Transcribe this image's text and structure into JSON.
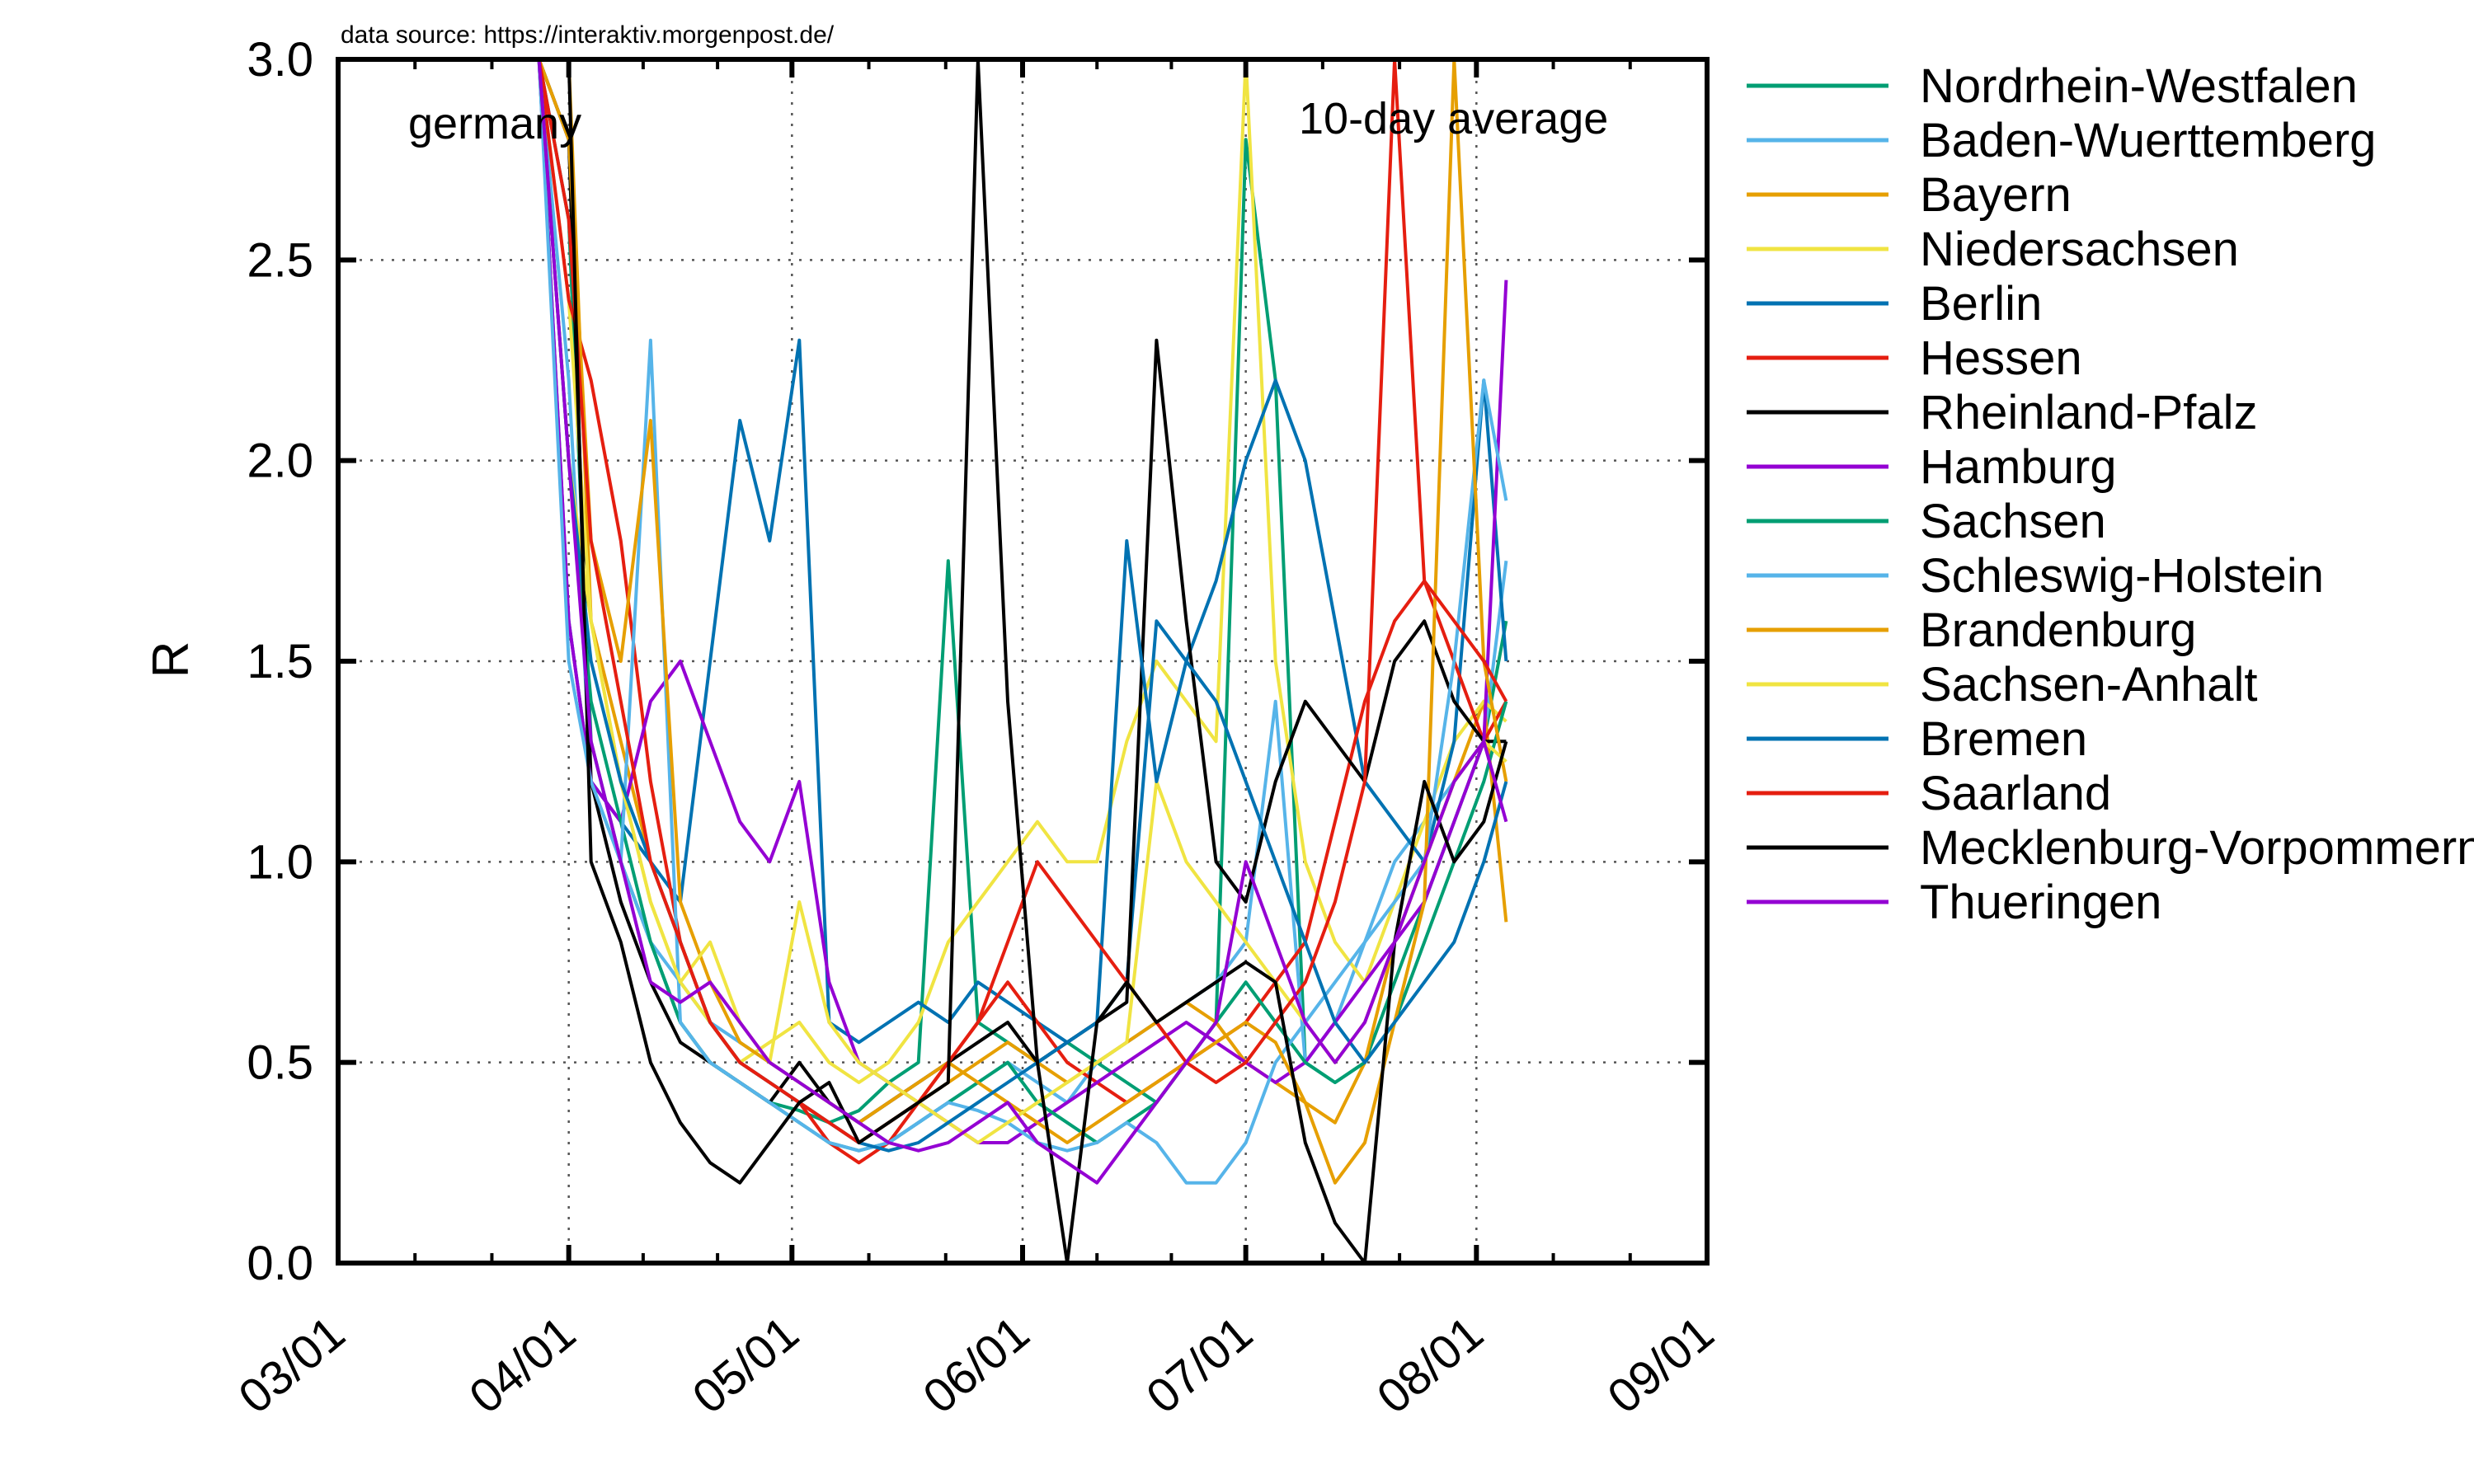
{
  "chart_data": {
    "type": "line",
    "source_note": "data source: https://interaktiv.morgenpost.de/",
    "annotation_left": "germany",
    "annotation_right": "10-day average",
    "xlabel": "",
    "ylabel": "R",
    "xlim": [
      "2020-03-01",
      "2020-09-01"
    ],
    "ylim": [
      0,
      3.0
    ],
    "x_ticks": [
      "03/01",
      "04/01",
      "05/01",
      "06/01",
      "07/01",
      "08/01",
      "09/01"
    ],
    "x_tick_dates": [
      "2020-03-01",
      "2020-04-01",
      "2020-05-01",
      "2020-06-01",
      "2020-07-01",
      "2020-08-01",
      "2020-09-01"
    ],
    "y_ticks": [
      "0.0",
      "0.5",
      "1.0",
      "1.5",
      "2.0",
      "2.5",
      "3.0"
    ],
    "y_tick_values": [
      0,
      0.5,
      1.0,
      1.5,
      2.0,
      2.5,
      3.0
    ],
    "grid": true,
    "legend_position": "outside-right",
    "x": [
      "2020-03-28",
      "2020-04-01",
      "2020-04-04",
      "2020-04-08",
      "2020-04-12",
      "2020-04-16",
      "2020-04-20",
      "2020-04-24",
      "2020-04-28",
      "2020-05-02",
      "2020-05-06",
      "2020-05-10",
      "2020-05-14",
      "2020-05-18",
      "2020-05-22",
      "2020-05-26",
      "2020-05-30",
      "2020-06-03",
      "2020-06-07",
      "2020-06-11",
      "2020-06-15",
      "2020-06-19",
      "2020-06-23",
      "2020-06-27",
      "2020-07-01",
      "2020-07-05",
      "2020-07-09",
      "2020-07-13",
      "2020-07-17",
      "2020-07-21",
      "2020-07-25",
      "2020-07-29",
      "2020-08-02",
      "2020-08-05"
    ],
    "series": [
      {
        "name": "Nordrhein-Westfalen",
        "color": "#009e73",
        "values": [
          3.0,
          2.6,
          1.3,
          1.0,
          0.8,
          0.6,
          0.5,
          0.45,
          0.4,
          0.38,
          0.35,
          0.38,
          0.45,
          0.5,
          1.75,
          0.6,
          0.55,
          0.5,
          0.55,
          0.5,
          0.45,
          0.4,
          0.5,
          0.6,
          2.8,
          2.2,
          0.5,
          0.45,
          0.5,
          0.7,
          0.9,
          1.1,
          1.3,
          1.6
        ]
      },
      {
        "name": "Baden-Wuerttemberg",
        "color": "#56b4e9",
        "values": [
          3.0,
          2.2,
          1.2,
          1.0,
          0.8,
          0.7,
          0.6,
          0.55,
          0.5,
          0.45,
          0.4,
          0.35,
          0.3,
          0.35,
          0.4,
          0.45,
          0.5,
          0.45,
          0.4,
          0.5,
          0.55,
          0.6,
          0.65,
          0.7,
          0.8,
          1.4,
          0.5,
          0.6,
          0.8,
          1.0,
          1.1,
          1.2,
          1.3,
          1.75
        ]
      },
      {
        "name": "Bayern",
        "color": "#e69f00",
        "values": [
          3.0,
          3.0,
          1.6,
          1.3,
          1.0,
          0.8,
          0.6,
          0.5,
          0.45,
          0.4,
          0.35,
          0.3,
          0.35,
          0.4,
          0.45,
          0.5,
          0.55,
          0.5,
          0.45,
          0.5,
          0.55,
          0.6,
          0.65,
          0.6,
          0.5,
          0.45,
          0.4,
          0.35,
          0.5,
          0.8,
          1.0,
          1.2,
          1.4,
          0.85
        ]
      },
      {
        "name": "Niedersachsen",
        "color": "#f0e442",
        "values": [
          3.0,
          2.4,
          1.6,
          1.2,
          0.9,
          0.7,
          0.6,
          0.5,
          0.55,
          0.6,
          0.5,
          0.45,
          0.5,
          0.6,
          0.8,
          0.9,
          1.0,
          1.1,
          1.0,
          1.0,
          1.3,
          1.5,
          1.4,
          1.3,
          3.0,
          1.5,
          1.0,
          0.8,
          0.7,
          0.9,
          1.1,
          1.3,
          1.4,
          1.35
        ]
      },
      {
        "name": "Berlin",
        "color": "#0072b2",
        "values": [
          3.0,
          1.6,
          1.2,
          1.1,
          1.0,
          0.9,
          1.5,
          2.1,
          1.8,
          2.3,
          0.6,
          0.55,
          0.6,
          0.65,
          0.6,
          0.7,
          0.65,
          0.6,
          0.55,
          0.6,
          0.7,
          1.6,
          1.5,
          1.7,
          2.0,
          2.2,
          2.0,
          1.6,
          1.2,
          1.1,
          1.0,
          1.3,
          2.2,
          1.5
        ]
      },
      {
        "name": "Hessen",
        "color": "#e51e10",
        "values": [
          3.0,
          2.4,
          2.2,
          1.8,
          1.2,
          0.8,
          0.6,
          0.5,
          0.45,
          0.4,
          0.3,
          0.25,
          0.3,
          0.4,
          0.5,
          0.6,
          0.7,
          0.6,
          0.5,
          0.45,
          0.4,
          0.45,
          0.5,
          0.55,
          0.6,
          0.7,
          0.8,
          1.1,
          1.4,
          1.6,
          1.7,
          1.5,
          1.3,
          1.4
        ]
      },
      {
        "name": "Rheinland-Pfalz",
        "color": "#000000",
        "values": [
          3.0,
          2.8,
          1.2,
          0.9,
          0.7,
          0.55,
          0.5,
          0.45,
          0.4,
          0.5,
          0.4,
          0.35,
          0.4,
          0.45,
          0.5,
          0.55,
          0.6,
          0.5,
          0.55,
          0.6,
          0.65,
          2.3,
          1.6,
          1.0,
          0.9,
          1.2,
          1.4,
          1.3,
          1.2,
          1.5,
          1.6,
          1.4,
          1.3,
          1.3
        ]
      },
      {
        "name": "Hamburg",
        "color": "#9400d3",
        "values": [
          3.0,
          1.6,
          1.2,
          1.1,
          1.4,
          1.5,
          1.3,
          1.1,
          1.0,
          1.2,
          0.7,
          0.5,
          0.45,
          0.4,
          0.35,
          0.3,
          0.3,
          0.35,
          0.4,
          0.45,
          0.5,
          0.55,
          0.6,
          0.55,
          0.5,
          0.45,
          0.5,
          0.6,
          0.7,
          0.8,
          0.9,
          1.1,
          1.3,
          2.45
        ]
      },
      {
        "name": "Sachsen",
        "color": "#009e73",
        "values": [
          3.0,
          2.0,
          1.4,
          1.1,
          0.8,
          0.6,
          0.5,
          0.45,
          0.4,
          0.35,
          0.3,
          0.28,
          0.3,
          0.35,
          0.4,
          0.45,
          0.5,
          0.4,
          0.35,
          0.3,
          0.35,
          0.4,
          0.5,
          0.6,
          0.7,
          0.6,
          0.5,
          0.45,
          0.5,
          0.6,
          0.8,
          1.0,
          1.2,
          1.4
        ]
      },
      {
        "name": "Schleswig-Holstein",
        "color": "#56b4e9",
        "values": [
          3.0,
          1.5,
          1.2,
          1.0,
          2.3,
          0.6,
          0.5,
          0.45,
          0.4,
          0.35,
          0.3,
          0.28,
          0.3,
          0.35,
          0.4,
          0.38,
          0.35,
          0.3,
          0.28,
          0.3,
          0.35,
          0.3,
          0.2,
          0.2,
          0.3,
          0.5,
          0.6,
          0.7,
          0.8,
          0.9,
          1.0,
          1.5,
          2.2,
          1.9
        ]
      },
      {
        "name": "Brandenburg",
        "color": "#e69f00",
        "values": [
          3.0,
          2.8,
          1.8,
          1.5,
          2.1,
          0.9,
          0.7,
          0.55,
          0.5,
          0.45,
          0.4,
          0.35,
          0.4,
          0.45,
          0.5,
          0.45,
          0.4,
          0.35,
          0.3,
          0.35,
          0.4,
          0.45,
          0.5,
          0.55,
          0.6,
          0.55,
          0.4,
          0.2,
          0.3,
          0.6,
          0.9,
          3.0,
          1.5,
          1.2
        ]
      },
      {
        "name": "Sachsen-Anhalt",
        "color": "#f0e442",
        "values": [
          3.0,
          2.0,
          1.6,
          1.2,
          0.9,
          0.7,
          0.8,
          0.6,
          0.5,
          0.9,
          0.6,
          0.5,
          0.45,
          0.4,
          0.35,
          0.3,
          0.35,
          0.4,
          0.45,
          0.5,
          0.55,
          1.2,
          1.0,
          0.9,
          0.8,
          0.7,
          0.6,
          0.5,
          0.6,
          0.8,
          1.0,
          1.2,
          1.3,
          1.25
        ]
      },
      {
        "name": "Bremen",
        "color": "#0072b2",
        "values": [
          3.0,
          2.0,
          1.5,
          1.2,
          1.0,
          0.8,
          0.6,
          0.5,
          0.45,
          0.4,
          0.35,
          0.3,
          0.28,
          0.3,
          0.35,
          0.4,
          0.45,
          0.5,
          0.55,
          0.6,
          1.8,
          1.2,
          1.5,
          1.4,
          1.2,
          1.0,
          0.8,
          0.6,
          0.5,
          0.6,
          0.7,
          0.8,
          1.0,
          1.2
        ]
      },
      {
        "name": "Saarland",
        "color": "#e51e10",
        "values": [
          3.0,
          2.6,
          1.8,
          1.4,
          1.0,
          0.8,
          0.6,
          0.5,
          0.45,
          0.4,
          0.35,
          0.3,
          0.35,
          0.4,
          0.5,
          0.6,
          0.8,
          1.0,
          0.9,
          0.8,
          0.7,
          0.6,
          0.5,
          0.45,
          0.5,
          0.6,
          0.7,
          0.9,
          1.2,
          3.0,
          1.7,
          1.6,
          1.5,
          1.4
        ]
      },
      {
        "name": "Mecklenburg-Vorpommern",
        "color": "#000000",
        "values": [
          3.0,
          3.0,
          1.0,
          0.8,
          0.5,
          0.35,
          0.25,
          0.2,
          0.3,
          0.4,
          0.45,
          0.3,
          0.35,
          0.4,
          0.45,
          3.0,
          1.4,
          0.5,
          0.0,
          0.6,
          0.7,
          0.6,
          0.65,
          0.7,
          0.75,
          0.7,
          0.3,
          0.1,
          0.0,
          0.8,
          1.2,
          1.0,
          1.1,
          1.3
        ]
      },
      {
        "name": "Thueringen",
        "color": "#9400d3",
        "values": [
          3.0,
          2.0,
          1.3,
          1.0,
          0.7,
          0.65,
          0.7,
          0.6,
          0.5,
          0.45,
          0.4,
          0.35,
          0.3,
          0.28,
          0.3,
          0.35,
          0.4,
          0.3,
          0.25,
          0.2,
          0.3,
          0.4,
          0.5,
          0.6,
          1.0,
          0.8,
          0.6,
          0.5,
          0.6,
          0.8,
          1.0,
          1.2,
          1.3,
          1.1
        ]
      }
    ]
  }
}
